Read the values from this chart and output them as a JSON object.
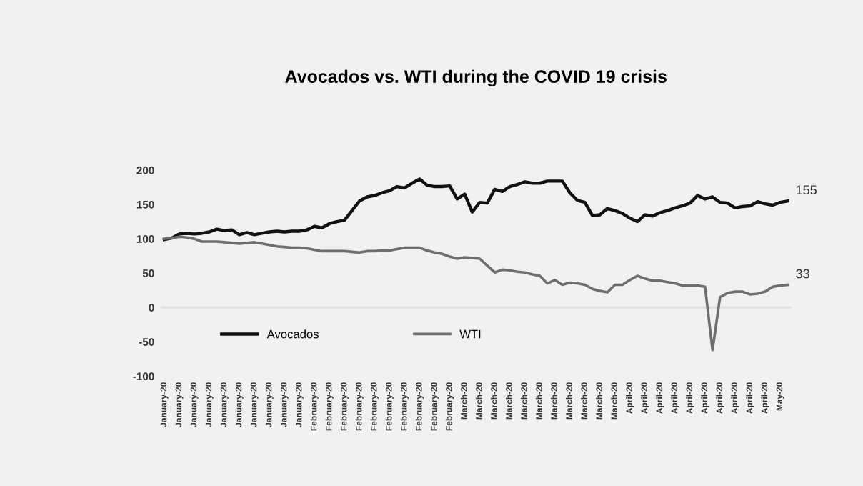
{
  "chart_data": {
    "type": "line",
    "title": "Avocados vs. WTI during the COVID 19 crisis",
    "categories": [
      "January-20",
      null,
      "January-20",
      null,
      "January-20",
      null,
      "January-20",
      null,
      "January-20",
      null,
      "January-20",
      null,
      "January-20",
      null,
      "January-20",
      null,
      "January-20",
      null,
      "January-20",
      null,
      "February-20",
      null,
      "February-20",
      null,
      "February-20",
      null,
      "February-20",
      null,
      "February-20",
      null,
      "February-20",
      null,
      "February-20",
      null,
      "February-20",
      null,
      "February-20",
      null,
      "February-20",
      null,
      "March-20",
      null,
      "March-20",
      null,
      "March-20",
      null,
      "March-20",
      null,
      "March-20",
      null,
      "March-20",
      null,
      "March-20",
      null,
      "March-20",
      null,
      "March-20",
      null,
      "March-20",
      null,
      "March-20",
      null,
      "April-20",
      null,
      "April-20",
      null,
      "April-20",
      null,
      "April-20",
      null,
      "April-20",
      null,
      "April-20",
      null,
      "April-20",
      null,
      "April-20",
      null,
      "April-20",
      null,
      "April-20",
      null,
      "May-20",
      null
    ],
    "series": [
      {
        "name": "Avocados",
        "color": "#111111",
        "values": [
          99,
          101,
          107,
          108,
          107,
          108,
          110,
          114,
          112,
          113,
          106,
          109,
          106,
          108,
          110,
          111,
          110,
          111,
          111,
          113,
          118,
          116,
          122,
          125,
          127,
          141,
          155,
          161,
          163,
          167,
          170,
          176,
          174,
          181,
          187,
          178,
          176,
          176,
          177,
          158,
          165,
          139,
          153,
          152,
          172,
          169,
          176,
          179,
          183,
          181,
          181,
          184,
          184,
          184,
          167,
          156,
          153,
          134,
          135,
          144,
          141,
          137,
          130,
          125,
          135,
          133,
          138,
          141,
          145,
          148,
          152,
          163,
          158,
          161,
          153,
          152,
          145,
          147,
          148,
          154,
          151,
          149,
          153,
          155
        ],
        "value_labels": [
          null,
          null,
          null,
          null,
          null,
          null,
          null,
          null,
          null,
          null,
          null,
          null,
          null,
          null,
          null,
          null,
          null,
          null,
          null,
          null,
          null,
          null,
          null,
          null,
          null,
          null,
          null,
          null,
          null,
          null,
          null,
          null,
          null,
          null,
          null,
          null,
          null,
          null,
          null,
          null,
          null,
          null,
          null,
          null,
          null,
          null,
          null,
          null,
          null,
          null,
          null,
          null,
          null,
          null,
          null,
          null,
          null,
          null,
          null,
          null,
          null,
          null,
          null,
          null,
          null,
          null,
          null,
          null,
          null,
          null,
          null,
          null,
          null,
          null,
          null,
          null,
          null,
          null,
          null,
          null,
          null,
          null,
          null,
          "155"
        ]
      },
      {
        "name": "WTI",
        "color": "#6e6e6e",
        "values": [
          100,
          101,
          103,
          102,
          100,
          96,
          96,
          96,
          95,
          94,
          93,
          94,
          95,
          93,
          91,
          89,
          88,
          87,
          87,
          86,
          84,
          82,
          82,
          82,
          82,
          81,
          80,
          82,
          82,
          83,
          83,
          85,
          87,
          87,
          87,
          83,
          80,
          78,
          74,
          71,
          73,
          72,
          71,
          61,
          51,
          55,
          54,
          52,
          51,
          48,
          46,
          35,
          40,
          33,
          36,
          35,
          33,
          27,
          24,
          22,
          33,
          33,
          40,
          46,
          42,
          39,
          39,
          37,
          35,
          32,
          32,
          32,
          30,
          -62,
          15,
          21,
          23,
          23,
          19,
          20,
          23,
          30,
          32,
          33
        ],
        "value_labels": [
          null,
          null,
          null,
          null,
          null,
          null,
          null,
          null,
          null,
          null,
          null,
          null,
          null,
          null,
          null,
          null,
          null,
          null,
          null,
          null,
          null,
          null,
          null,
          null,
          null,
          null,
          null,
          null,
          null,
          null,
          null,
          null,
          null,
          null,
          null,
          null,
          null,
          null,
          null,
          null,
          null,
          null,
          null,
          null,
          null,
          null,
          null,
          null,
          null,
          null,
          null,
          null,
          null,
          null,
          null,
          null,
          null,
          null,
          null,
          null,
          null,
          null,
          null,
          null,
          null,
          null,
          null,
          null,
          null,
          null,
          null,
          null,
          null,
          null,
          null,
          null,
          null,
          null,
          null,
          null,
          null,
          null,
          null,
          "33"
        ]
      }
    ],
    "ylim": [
      -100,
      200
    ],
    "yticks": [
      -100,
      -50,
      0,
      50,
      100,
      150,
      200
    ],
    "ref_lines": [
      {
        "axis": "y",
        "value": 0,
        "color": "#dedede"
      }
    ],
    "grid": false,
    "legend": "bottom left"
  }
}
